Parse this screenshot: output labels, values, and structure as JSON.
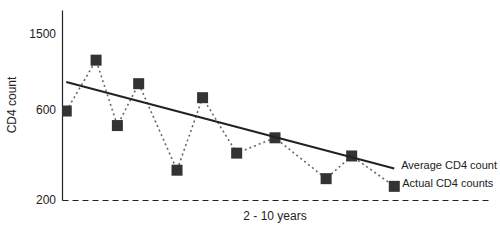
{
  "chart_data": {
    "type": "line",
    "ylabel": "CD4 count",
    "xlabel": "2 - 10 years",
    "xlim": [
      0,
      10
    ],
    "ylim": [
      200,
      2000
    ],
    "yticks": [
      200,
      600,
      1500
    ],
    "log": "y",
    "tick_labels": "y",
    "series": [
      {
        "name": "Actual CD4 counts",
        "color": "#333333",
        "marker": "square",
        "line_style": "dotted",
        "x": [
          0.1,
          0.8,
          1.3,
          1.8,
          2.7,
          3.3,
          4.1,
          5.0,
          6.2,
          6.8,
          7.8
        ],
        "values": [
          588,
          1089,
          493,
          819,
          287,
          691,
          353,
          425,
          259,
          341,
          236
        ]
      },
      {
        "name": "Average CD4 count",
        "color": "#222222",
        "line_style": "solid",
        "x": [
          0.1,
          7.8
        ],
        "values": [
          836,
          293
        ]
      }
    ]
  }
}
